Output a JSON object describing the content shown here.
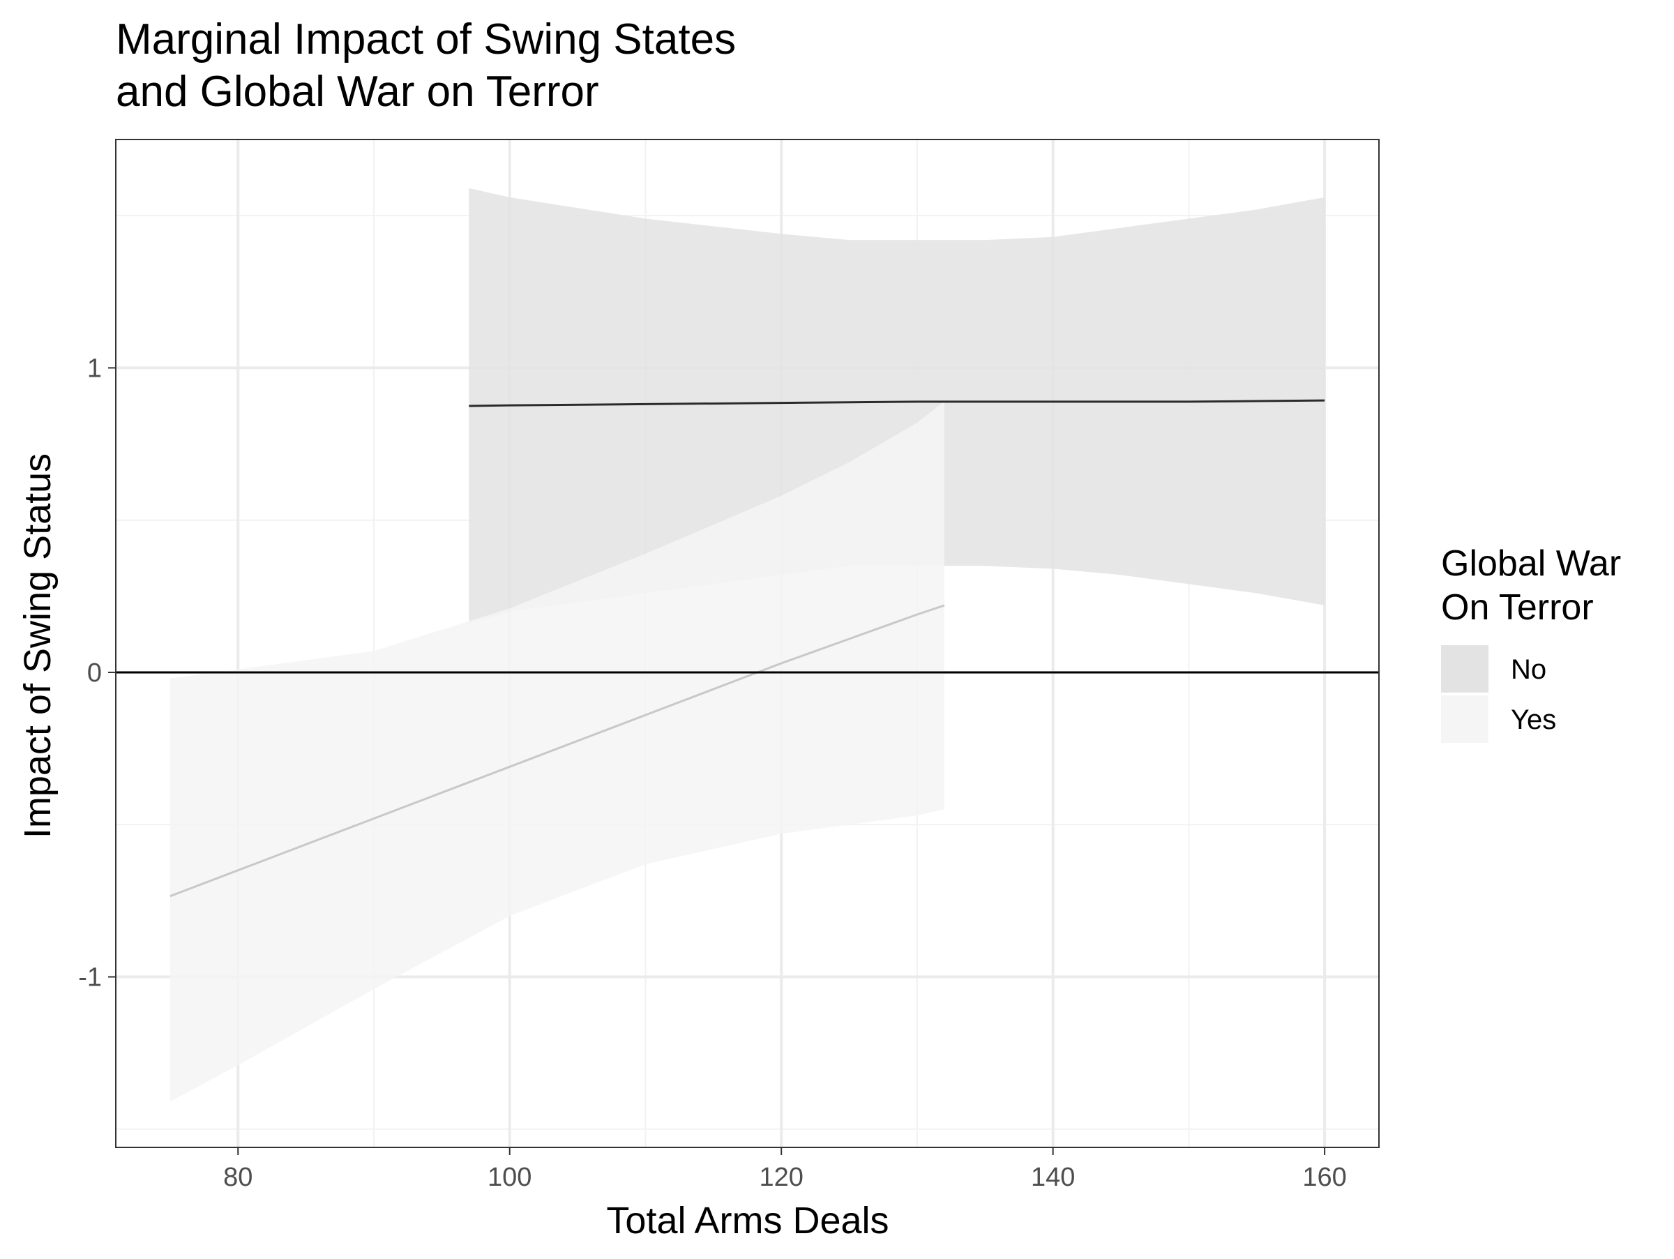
{
  "chart_data": {
    "type": "line",
    "title": [
      "Marginal Impact of Swing States",
      "and Global War on Terror"
    ],
    "xlabel": "Total Arms Deals",
    "ylabel": "Impact of Swing Status",
    "xlim": [
      71,
      164
    ],
    "ylim": [
      -1.56,
      1.75
    ],
    "x_ticks": [
      80,
      100,
      120,
      140,
      160
    ],
    "x_tick_labels": [
      "80",
      "100",
      "120",
      "140",
      "160"
    ],
    "x_minor_ticks": [
      90,
      110,
      130,
      150
    ],
    "y_ticks": [
      -1,
      0,
      1
    ],
    "y_tick_labels": [
      "-1",
      "0",
      "1"
    ],
    "y_minor_ticks": [
      -1.5,
      -0.5,
      0.5,
      1.5
    ],
    "reference_line_y": 0,
    "grid": true,
    "legend": {
      "title": [
        "Global War",
        "On Terror"
      ],
      "position": "right",
      "entries": [
        "No",
        "Yes"
      ]
    },
    "series": [
      {
        "name": "No",
        "line_color": "#2b2b2b",
        "ribbon_color": "#e3e3e3",
        "x": [
          97,
          100,
          110,
          120,
          125,
          130,
          135,
          140,
          145,
          150,
          155,
          160
        ],
        "y": [
          0.875,
          0.877,
          0.881,
          0.885,
          0.887,
          0.889,
          0.889,
          0.889,
          0.889,
          0.889,
          0.891,
          0.893
        ],
        "lower": [
          0.16,
          0.2,
          0.26,
          0.32,
          0.35,
          0.35,
          0.35,
          0.34,
          0.32,
          0.29,
          0.26,
          0.22
        ],
        "upper": [
          1.59,
          1.56,
          1.49,
          1.44,
          1.42,
          1.42,
          1.42,
          1.43,
          1.46,
          1.49,
          1.52,
          1.56
        ]
      },
      {
        "name": "Yes",
        "line_color": "#c8c8c8",
        "ribbon_color": "#f5f5f5",
        "x": [
          75,
          80,
          90,
          100,
          110,
          120,
          125,
          130,
          132
        ],
        "y": [
          -0.735,
          -0.65,
          -0.48,
          -0.31,
          -0.14,
          0.03,
          0.11,
          0.19,
          0.22
        ],
        "lower": [
          -1.41,
          -1.29,
          -1.04,
          -0.8,
          -0.63,
          -0.53,
          -0.5,
          -0.47,
          -0.45
        ],
        "upper": [
          -0.02,
          0.01,
          0.07,
          0.21,
          0.39,
          0.58,
          0.69,
          0.82,
          0.89
        ]
      }
    ]
  }
}
